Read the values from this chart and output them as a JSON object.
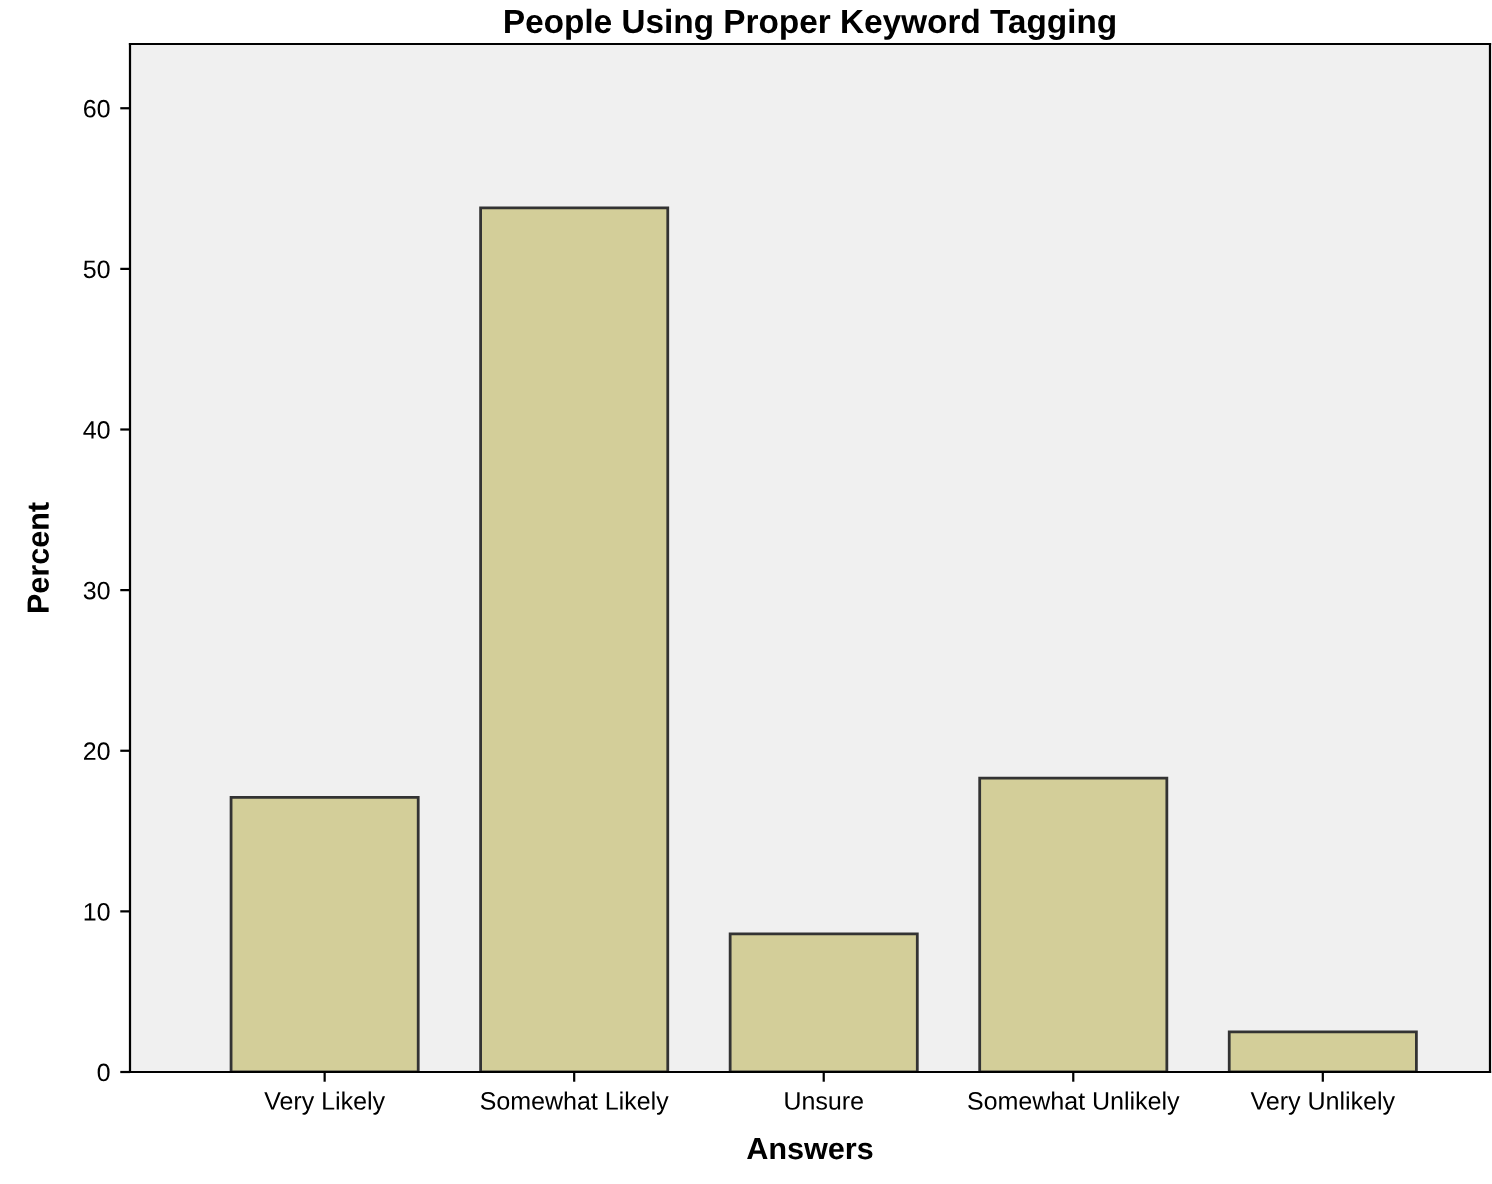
{
  "chart_data": {
    "type": "bar",
    "title": "People Using Proper Keyword Tagging",
    "xlabel": "Answers",
    "ylabel": "Percent",
    "categories": [
      "Very Likely",
      "Somewhat Likely",
      "Unsure",
      "Somewhat Unlikely",
      "Very Unlikely"
    ],
    "values": [
      17.1,
      53.8,
      8.6,
      18.3,
      2.5
    ],
    "color": "#d3ce99",
    "ylim": [
      0,
      64
    ],
    "yticks": [
      0,
      10,
      20,
      30,
      40,
      50,
      60
    ],
    "grid": false
  }
}
